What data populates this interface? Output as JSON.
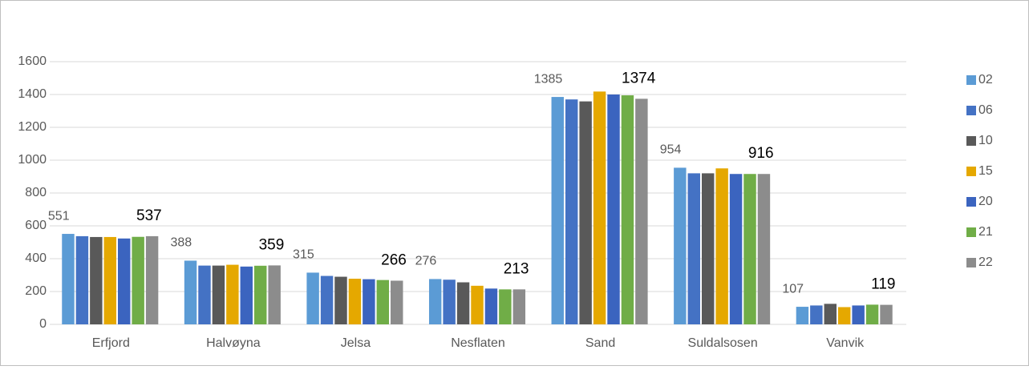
{
  "chart_data": {
    "type": "bar",
    "categories": [
      "Erfjord",
      "Halvøyna",
      "Jelsa",
      "Nesflaten",
      "Sand",
      "Suldalsosen",
      "Vanvik"
    ],
    "series": [
      {
        "name": "02",
        "color": "#5b9bd5",
        "values": [
          551,
          388,
          315,
          276,
          1385,
          954,
          107
        ],
        "data_labels": true
      },
      {
        "name": "06",
        "color": "#4472c4",
        "values": [
          537,
          358,
          295,
          272,
          1370,
          920,
          115
        ]
      },
      {
        "name": "10",
        "color": "#595959",
        "values": [
          532,
          358,
          290,
          256,
          1358,
          920,
          125
        ]
      },
      {
        "name": "15",
        "color": "#e5a800",
        "values": [
          532,
          363,
          278,
          235,
          1418,
          950,
          105
        ]
      },
      {
        "name": "20",
        "color": "#3b64bf",
        "values": [
          523,
          352,
          275,
          218,
          1400,
          916,
          115
        ]
      },
      {
        "name": "21",
        "color": "#70ad47",
        "values": [
          533,
          357,
          270,
          213,
          1395,
          916,
          120
        ]
      },
      {
        "name": "22",
        "color": "#8c8c8c",
        "values": [
          537,
          359,
          266,
          213,
          1374,
          916,
          119
        ],
        "data_labels": true
      }
    ],
    "ylim": [
      0,
      1600
    ],
    "yticks": [
      0,
      200,
      400,
      600,
      800,
      1000,
      1200,
      1400,
      1600
    ],
    "grid": true,
    "legend": "right"
  }
}
